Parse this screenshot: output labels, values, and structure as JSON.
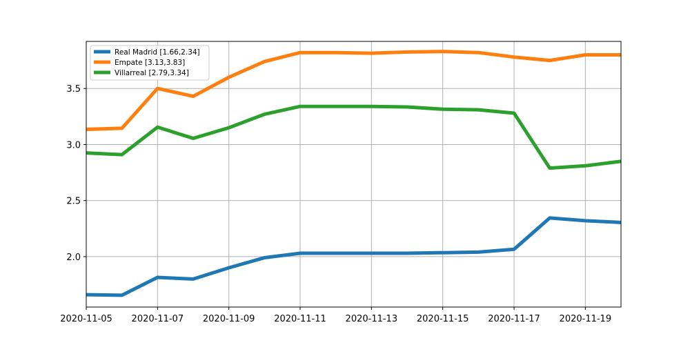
{
  "chart_data": {
    "type": "line",
    "title": "",
    "xlabel": "",
    "ylabel": "",
    "x": [
      "2020-11-05",
      "2020-11-06",
      "2020-11-07",
      "2020-11-08",
      "2020-11-09",
      "2020-11-10",
      "2020-11-11",
      "2020-11-12",
      "2020-11-13",
      "2020-11-14",
      "2020-11-15",
      "2020-11-16",
      "2020-11-17",
      "2020-11-18",
      "2020-11-19",
      "2020-11-20"
    ],
    "xlim": [
      "2020-11-05",
      "2020-11-20"
    ],
    "xticks": [
      "2020-11-05",
      "2020-11-07",
      "2020-11-09",
      "2020-11-11",
      "2020-11-13",
      "2020-11-15",
      "2020-11-17",
      "2020-11-19"
    ],
    "ylim": [
      1.55,
      3.92
    ],
    "yticks": [
      2.0,
      2.5,
      3.0,
      3.5
    ],
    "ytick_labels": [
      "2.0",
      "2.5",
      "3.0",
      "3.5"
    ],
    "grid": true,
    "legend_position": "top-left",
    "series": [
      {
        "name": "Real Madrid [1.66,2.34]",
        "color": "#1f77b4",
        "values": [
          1.66,
          1.655,
          1.815,
          1.8,
          1.9,
          1.99,
          2.03,
          2.03,
          2.03,
          2.03,
          2.035,
          2.04,
          2.065,
          2.345,
          2.32,
          2.305
        ]
      },
      {
        "name": "Empate [3.13,3.83]",
        "color": "#ff7f0e",
        "values": [
          3.135,
          3.145,
          3.5,
          3.43,
          3.6,
          3.74,
          3.82,
          3.82,
          3.815,
          3.825,
          3.83,
          3.82,
          3.78,
          3.75,
          3.8,
          3.8
        ]
      },
      {
        "name": "Villarreal [2.79,3.34]",
        "color": "#2ca02c",
        "values": [
          2.925,
          2.91,
          3.155,
          3.055,
          3.15,
          3.27,
          3.34,
          3.34,
          3.34,
          3.335,
          3.315,
          3.31,
          3.28,
          2.79,
          2.81,
          2.85
        ]
      }
    ]
  }
}
